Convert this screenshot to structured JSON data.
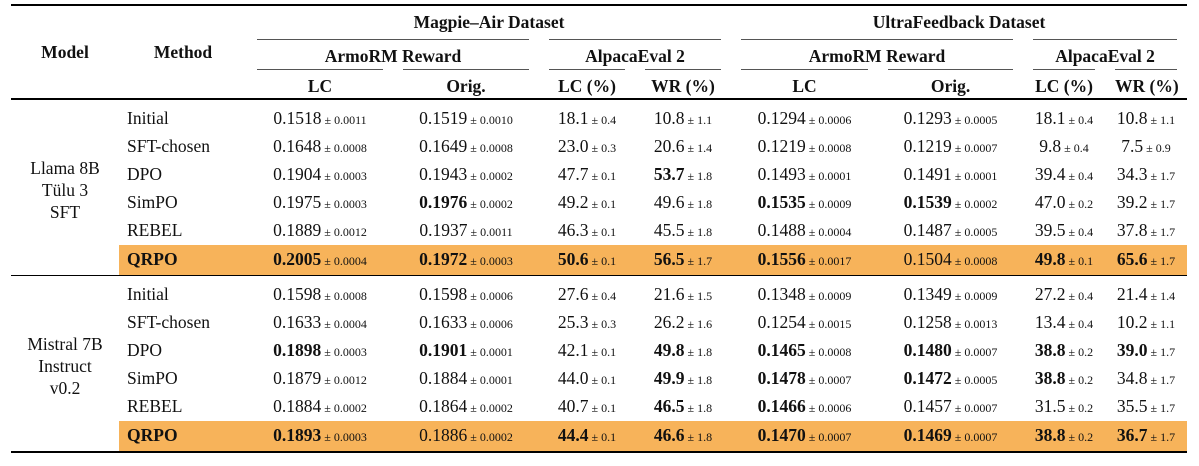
{
  "header": {
    "model": "Model",
    "method": "Method",
    "datasets": [
      "Magpie–Air Dataset",
      "UltraFeedback Dataset"
    ],
    "metrics": [
      "ArmoRM Reward",
      "AlpacaEval 2",
      "ArmoRM Reward",
      "AlpacaEval 2"
    ],
    "subcols": [
      "LC",
      "Orig.",
      "LC (%)",
      "WR (%)",
      "LC",
      "Orig.",
      "LC (%)",
      "WR (%)"
    ]
  },
  "groups": [
    {
      "model": [
        "Llama 8B",
        "Tülu 3",
        "SFT"
      ],
      "rows": [
        {
          "method": "Initial",
          "highlight": false,
          "cells": [
            {
              "v": "0.1518",
              "pm": "± 0.0011",
              "b": false
            },
            {
              "v": "0.1519",
              "pm": "± 0.0010",
              "b": false
            },
            {
              "v": "18.1",
              "pm": "± 0.4",
              "b": false
            },
            {
              "v": "10.8",
              "pm": "± 1.1",
              "b": false
            },
            {
              "v": "0.1294",
              "pm": "± 0.0006",
              "b": false
            },
            {
              "v": "0.1293",
              "pm": "± 0.0005",
              "b": false
            },
            {
              "v": "18.1",
              "pm": "± 0.4",
              "b": false
            },
            {
              "v": "10.8",
              "pm": "± 1.1",
              "b": false
            }
          ]
        },
        {
          "method": "SFT-chosen",
          "highlight": false,
          "cells": [
            {
              "v": "0.1648",
              "pm": "± 0.0008",
              "b": false
            },
            {
              "v": "0.1649",
              "pm": "± 0.0008",
              "b": false
            },
            {
              "v": "23.0",
              "pm": "± 0.3",
              "b": false
            },
            {
              "v": "20.6",
              "pm": "± 1.4",
              "b": false
            },
            {
              "v": "0.1219",
              "pm": "± 0.0008",
              "b": false
            },
            {
              "v": "0.1219",
              "pm": "± 0.0007",
              "b": false
            },
            {
              "v": "9.8",
              "pm": "± 0.4",
              "b": false
            },
            {
              "v": "7.5",
              "pm": "± 0.9",
              "b": false
            }
          ]
        },
        {
          "method": "DPO",
          "highlight": false,
          "cells": [
            {
              "v": "0.1904",
              "pm": "± 0.0003",
              "b": false
            },
            {
              "v": "0.1943",
              "pm": "± 0.0002",
              "b": false
            },
            {
              "v": "47.7",
              "pm": "± 0.1",
              "b": false
            },
            {
              "v": "53.7",
              "pm": "± 1.8",
              "b": true
            },
            {
              "v": "0.1493",
              "pm": "± 0.0001",
              "b": false
            },
            {
              "v": "0.1491",
              "pm": "± 0.0001",
              "b": false
            },
            {
              "v": "39.4",
              "pm": "± 0.4",
              "b": false
            },
            {
              "v": "34.3",
              "pm": "± 1.7",
              "b": false
            }
          ]
        },
        {
          "method": "SimPO",
          "highlight": false,
          "cells": [
            {
              "v": "0.1975",
              "pm": "± 0.0003",
              "b": false
            },
            {
              "v": "0.1976",
              "pm": "± 0.0002",
              "b": true
            },
            {
              "v": "49.2",
              "pm": "± 0.1",
              "b": false
            },
            {
              "v": "49.6",
              "pm": "± 1.8",
              "b": false
            },
            {
              "v": "0.1535",
              "pm": "± 0.0009",
              "b": true
            },
            {
              "v": "0.1539",
              "pm": "± 0.0002",
              "b": true
            },
            {
              "v": "47.0",
              "pm": "± 0.2",
              "b": false
            },
            {
              "v": "39.2",
              "pm": "± 1.7",
              "b": false
            }
          ]
        },
        {
          "method": "REBEL",
          "highlight": false,
          "cells": [
            {
              "v": "0.1889",
              "pm": "± 0.0012",
              "b": false
            },
            {
              "v": "0.1937",
              "pm": "± 0.0011",
              "b": false
            },
            {
              "v": "46.3",
              "pm": "± 0.1",
              "b": false
            },
            {
              "v": "45.5",
              "pm": "± 1.8",
              "b": false
            },
            {
              "v": "0.1488",
              "pm": "± 0.0004",
              "b": false
            },
            {
              "v": "0.1487",
              "pm": "± 0.0005",
              "b": false
            },
            {
              "v": "39.5",
              "pm": "± 0.4",
              "b": false
            },
            {
              "v": "37.8",
              "pm": "± 1.7",
              "b": false
            }
          ]
        },
        {
          "method": "QRPO",
          "highlight": true,
          "cells": [
            {
              "v": "0.2005",
              "pm": "± 0.0004",
              "b": true
            },
            {
              "v": "0.1972",
              "pm": "± 0.0003",
              "b": true
            },
            {
              "v": "50.6",
              "pm": "± 0.1",
              "b": true
            },
            {
              "v": "56.5",
              "pm": "± 1.7",
              "b": true
            },
            {
              "v": "0.1556",
              "pm": "± 0.0017",
              "b": true
            },
            {
              "v": "0.1504",
              "pm": "± 0.0008",
              "b": false
            },
            {
              "v": "49.8",
              "pm": "± 0.1",
              "b": true
            },
            {
              "v": "65.6",
              "pm": "± 1.7",
              "b": true
            }
          ]
        }
      ]
    },
    {
      "model": [
        "Mistral 7B",
        "Instruct",
        "v0.2"
      ],
      "rows": [
        {
          "method": "Initial",
          "highlight": false,
          "cells": [
            {
              "v": "0.1598",
              "pm": "± 0.0008",
              "b": false
            },
            {
              "v": "0.1598",
              "pm": "± 0.0006",
              "b": false
            },
            {
              "v": "27.6",
              "pm": "± 0.4",
              "b": false
            },
            {
              "v": "21.6",
              "pm": "± 1.5",
              "b": false
            },
            {
              "v": "0.1348",
              "pm": "± 0.0009",
              "b": false
            },
            {
              "v": "0.1349",
              "pm": "± 0.0009",
              "b": false
            },
            {
              "v": "27.2",
              "pm": "± 0.4",
              "b": false
            },
            {
              "v": "21.4",
              "pm": "± 1.4",
              "b": false
            }
          ]
        },
        {
          "method": "SFT-chosen",
          "highlight": false,
          "cells": [
            {
              "v": "0.1633",
              "pm": "± 0.0004",
              "b": false
            },
            {
              "v": "0.1633",
              "pm": "± 0.0006",
              "b": false
            },
            {
              "v": "25.3",
              "pm": "± 0.3",
              "b": false
            },
            {
              "v": "26.2",
              "pm": "± 1.6",
              "b": false
            },
            {
              "v": "0.1254",
              "pm": "± 0.0015",
              "b": false
            },
            {
              "v": "0.1258",
              "pm": "± 0.0013",
              "b": false
            },
            {
              "v": "13.4",
              "pm": "± 0.4",
              "b": false
            },
            {
              "v": "10.2",
              "pm": "± 1.1",
              "b": false
            }
          ]
        },
        {
          "method": "DPO",
          "highlight": false,
          "cells": [
            {
              "v": "0.1898",
              "pm": "± 0.0003",
              "b": true
            },
            {
              "v": "0.1901",
              "pm": "± 0.0001",
              "b": true
            },
            {
              "v": "42.1",
              "pm": "± 0.1",
              "b": false
            },
            {
              "v": "49.8",
              "pm": "± 1.8",
              "b": true
            },
            {
              "v": "0.1465",
              "pm": "± 0.0008",
              "b": true
            },
            {
              "v": "0.1480",
              "pm": "± 0.0007",
              "b": true
            },
            {
              "v": "38.8",
              "pm": "± 0.2",
              "b": true
            },
            {
              "v": "39.0",
              "pm": "± 1.7",
              "b": true
            }
          ]
        },
        {
          "method": "SimPO",
          "highlight": false,
          "cells": [
            {
              "v": "0.1879",
              "pm": "± 0.0012",
              "b": false
            },
            {
              "v": "0.1884",
              "pm": "± 0.0001",
              "b": false
            },
            {
              "v": "44.0",
              "pm": "± 0.1",
              "b": false
            },
            {
              "v": "49.9",
              "pm": "± 1.8",
              "b": true
            },
            {
              "v": "0.1478",
              "pm": "± 0.0007",
              "b": true
            },
            {
              "v": "0.1472",
              "pm": "± 0.0005",
              "b": true
            },
            {
              "v": "38.8",
              "pm": "± 0.2",
              "b": true
            },
            {
              "v": "34.8",
              "pm": "± 1.7",
              "b": false
            }
          ]
        },
        {
          "method": "REBEL",
          "highlight": false,
          "cells": [
            {
              "v": "0.1884",
              "pm": "± 0.0002",
              "b": false
            },
            {
              "v": "0.1864",
              "pm": "± 0.0002",
              "b": false
            },
            {
              "v": "40.7",
              "pm": "± 0.1",
              "b": false
            },
            {
              "v": "46.5",
              "pm": "± 1.8",
              "b": true
            },
            {
              "v": "0.1466",
              "pm": "± 0.0006",
              "b": true
            },
            {
              "v": "0.1457",
              "pm": "± 0.0007",
              "b": false
            },
            {
              "v": "31.5",
              "pm": "± 0.2",
              "b": false
            },
            {
              "v": "35.5",
              "pm": "± 1.7",
              "b": false
            }
          ]
        },
        {
          "method": "QRPO",
          "highlight": true,
          "cells": [
            {
              "v": "0.1893",
              "pm": "± 0.0003",
              "b": true
            },
            {
              "v": "0.1886",
              "pm": "± 0.0002",
              "b": false
            },
            {
              "v": "44.4",
              "pm": "± 0.1",
              "b": true
            },
            {
              "v": "46.6",
              "pm": "± 1.8",
              "b": true
            },
            {
              "v": "0.1470",
              "pm": "± 0.0007",
              "b": true
            },
            {
              "v": "0.1469",
              "pm": "± 0.0007",
              "b": true
            },
            {
              "v": "38.8",
              "pm": "± 0.2",
              "b": true
            },
            {
              "v": "36.7",
              "pm": "± 1.7",
              "b": true
            }
          ]
        }
      ]
    }
  ]
}
